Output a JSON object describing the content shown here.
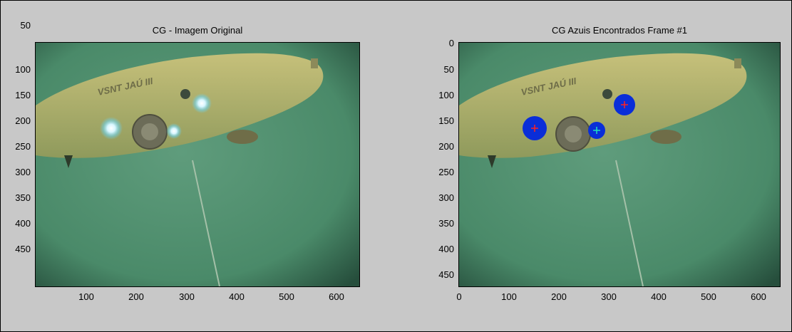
{
  "figure": {
    "left_plot": {
      "title": "CG - Imagem Original",
      "yticks": [
        "50",
        "100",
        "150",
        "200",
        "250",
        "300",
        "350",
        "400",
        "450"
      ],
      "xticks": [
        "100",
        "200",
        "300",
        "400",
        "500",
        "600"
      ],
      "hull_text": "VSNT JAÚ III"
    },
    "right_plot": {
      "title": "CG Azuis Encontrados Frame #1",
      "yticks": [
        "0",
        "50",
        "100",
        "150",
        "200",
        "250",
        "300",
        "350",
        "400",
        "450"
      ],
      "xticks": [
        "0",
        "100",
        "200",
        "300",
        "400",
        "500",
        "600"
      ],
      "hull_text": "VSNT JAÚ III"
    },
    "colors": {
      "figure_bg": "#c8c8c8",
      "water": "#4f8f6e",
      "hull": "#b4b070",
      "detected_blob": "#0a2ed8",
      "centroid_red": "#ff2020",
      "centroid_cyan": "#20e0c0"
    }
  }
}
